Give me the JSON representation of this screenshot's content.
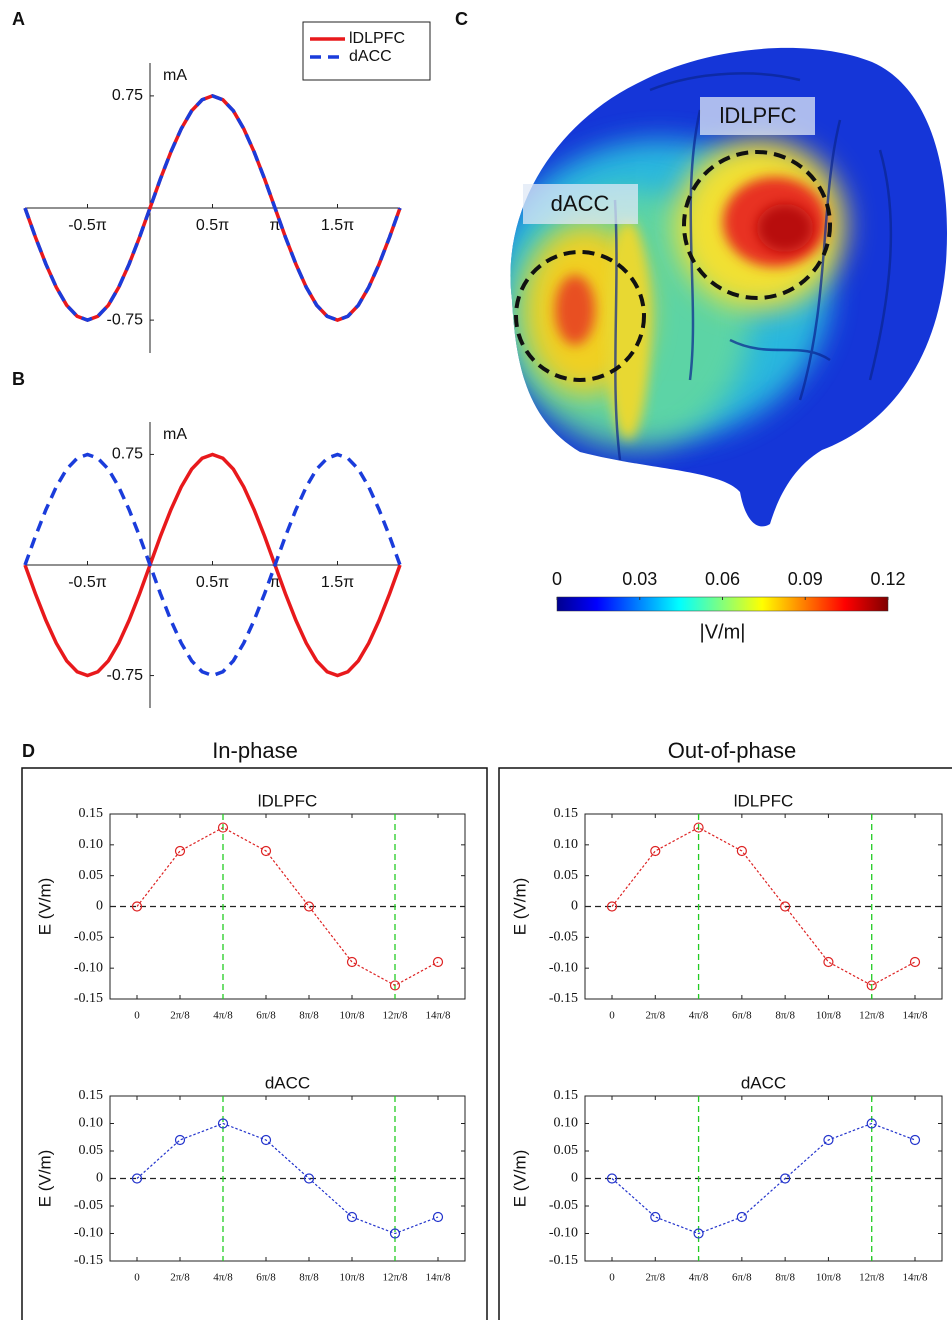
{
  "figure": {
    "panel_labels": [
      "A",
      "B",
      "C",
      "D"
    ],
    "column_titles": [
      "In-phase",
      "Out-of-phase"
    ]
  },
  "chart_data": [
    {
      "type": "line",
      "x": [
        -1,
        -0.917,
        -0.833,
        -0.75,
        -0.667,
        -0.583,
        -0.5,
        -0.417,
        -0.333,
        -0.25,
        -0.167,
        -0.083,
        0,
        0.083,
        0.167,
        0.25,
        0.333,
        0.417,
        0.5,
        0.583,
        0.667,
        0.75,
        0.833,
        0.917,
        1,
        1.083,
        1.167,
        1.25,
        1.333,
        1.417,
        1.5,
        1.583,
        1.667,
        1.75,
        1.833,
        1.917,
        2
      ],
      "xlim": [
        -1,
        2
      ],
      "xticks": [
        {
          "value": -0.5,
          "label": "-0.5π"
        },
        {
          "value": 0.5,
          "label": "0.5π"
        },
        {
          "value": 1,
          "label": "π"
        },
        {
          "value": 1.5,
          "label": "1.5π"
        }
      ],
      "ylim": [
        -0.97,
        0.97
      ],
      "yticks": [
        0.75,
        -0.75
      ],
      "ylabel": "mA",
      "legend": "top-right",
      "series": [
        {
          "name": "lDLPFC",
          "color": "#e8191c",
          "dash": false,
          "values": [
            0,
            -0.194,
            -0.375,
            -0.53,
            -0.65,
            -0.724,
            -0.75,
            -0.724,
            -0.65,
            -0.53,
            -0.375,
            -0.194,
            0,
            0.194,
            0.375,
            0.53,
            0.65,
            0.724,
            0.75,
            0.724,
            0.65,
            0.53,
            0.375,
            0.194,
            0,
            -0.194,
            -0.375,
            -0.53,
            -0.65,
            -0.724,
            -0.75,
            -0.724,
            -0.65,
            -0.53,
            -0.375,
            -0.194,
            0
          ]
        },
        {
          "name": "dACC",
          "color": "#1a3cdb",
          "dash": true,
          "values": [
            0,
            -0.194,
            -0.375,
            -0.53,
            -0.65,
            -0.724,
            -0.75,
            -0.724,
            -0.65,
            -0.53,
            -0.375,
            -0.194,
            0,
            0.194,
            0.375,
            0.53,
            0.65,
            0.724,
            0.75,
            0.724,
            0.65,
            0.53,
            0.375,
            0.194,
            0,
            -0.194,
            -0.375,
            -0.53,
            -0.65,
            -0.724,
            -0.75,
            -0.724,
            -0.65,
            -0.53,
            -0.375,
            -0.194,
            0
          ]
        }
      ]
    },
    {
      "type": "line",
      "x": [
        -1,
        -0.917,
        -0.833,
        -0.75,
        -0.667,
        -0.583,
        -0.5,
        -0.417,
        -0.333,
        -0.25,
        -0.167,
        -0.083,
        0,
        0.083,
        0.167,
        0.25,
        0.333,
        0.417,
        0.5,
        0.583,
        0.667,
        0.75,
        0.833,
        0.917,
        1,
        1.083,
        1.167,
        1.25,
        1.333,
        1.417,
        1.5,
        1.583,
        1.667,
        1.75,
        1.833,
        1.917,
        2
      ],
      "xlim": [
        -1,
        2
      ],
      "xticks": [
        {
          "value": -0.5,
          "label": "-0.5π"
        },
        {
          "value": 0.5,
          "label": "0.5π"
        },
        {
          "value": 1,
          "label": "π"
        },
        {
          "value": 1.5,
          "label": "1.5π"
        }
      ],
      "ylim": [
        -0.97,
        0.97
      ],
      "yticks": [
        0.75,
        -0.75
      ],
      "ylabel": "mA",
      "series": [
        {
          "color": "#e8191c",
          "dash": false,
          "values": [
            0,
            -0.194,
            -0.375,
            -0.53,
            -0.65,
            -0.724,
            -0.75,
            -0.724,
            -0.65,
            -0.53,
            -0.375,
            -0.194,
            0,
            0.194,
            0.375,
            0.53,
            0.65,
            0.724,
            0.75,
            0.724,
            0.65,
            0.53,
            0.375,
            0.194,
            0,
            -0.194,
            -0.375,
            -0.53,
            -0.65,
            -0.724,
            -0.75,
            -0.724,
            -0.65,
            -0.53,
            -0.375,
            -0.194,
            0
          ]
        },
        {
          "color": "#1a3cdb",
          "dash": true,
          "values": [
            0,
            0.194,
            0.375,
            0.53,
            0.65,
            0.724,
            0.75,
            0.724,
            0.65,
            0.53,
            0.375,
            0.194,
            0,
            -0.194,
            -0.375,
            -0.53,
            -0.65,
            -0.724,
            -0.75,
            -0.724,
            -0.65,
            -0.53,
            -0.375,
            -0.194,
            0,
            0.194,
            0.375,
            0.53,
            0.65,
            0.724,
            0.75,
            0.724,
            0.65,
            0.53,
            0.375,
            0.194,
            0
          ]
        }
      ]
    },
    {
      "type": "colorbar",
      "annotations": [
        "lDLPFC",
        "dACC"
      ],
      "xlim": [
        0,
        0.12
      ],
      "xticks": [
        0,
        0.03,
        0.06,
        0.09,
        0.12
      ],
      "xlabel": "|V/m|",
      "colormap": "jet"
    },
    {
      "type": "line",
      "title": "lDLPFC",
      "box": true,
      "zero_line": true,
      "highlight_indices": [
        2,
        6
      ],
      "categories": [
        "0",
        "2π/8",
        "4π/8",
        "6π/8",
        "8π/8",
        "10π/8",
        "12π/8",
        "14π/8"
      ],
      "ylim": [
        -0.15,
        0.15
      ],
      "yticks": [
        0.15,
        {
          "value": 0.1,
          "label": "0.10"
        },
        0.05,
        0,
        -0.05,
        {
          "value": -0.1,
          "label": "-0.10"
        },
        -0.15
      ],
      "ylabel": "E (V/m)",
      "series": [
        {
          "color": "#dd2222",
          "dash": "dotted",
          "marker": "circle",
          "values": [
            0,
            0.09,
            0.128,
            0.09,
            0,
            -0.09,
            -0.128,
            -0.09
          ]
        }
      ]
    },
    {
      "type": "line",
      "title": "dACC",
      "box": true,
      "zero_line": true,
      "highlight_indices": [
        2,
        6
      ],
      "categories": [
        "0",
        "2π/8",
        "4π/8",
        "6π/8",
        "8π/8",
        "10π/8",
        "12π/8",
        "14π/8"
      ],
      "ylim": [
        -0.15,
        0.15
      ],
      "yticks": [
        0.15,
        {
          "value": 0.1,
          "label": "0.10"
        },
        0.05,
        0,
        -0.05,
        {
          "value": -0.1,
          "label": "-0.10"
        },
        -0.15
      ],
      "ylabel": "E (V/m)",
      "series": [
        {
          "color": "#2233cc",
          "dash": "dotted",
          "marker": "circle",
          "values": [
            0,
            0.07,
            0.1,
            0.07,
            0,
            -0.07,
            -0.1,
            -0.07
          ]
        }
      ]
    },
    {
      "type": "line",
      "title": "lDLPFC",
      "box": true,
      "zero_line": true,
      "highlight_indices": [
        2,
        6
      ],
      "categories": [
        "0",
        "2π/8",
        "4π/8",
        "6π/8",
        "8π/8",
        "10π/8",
        "12π/8",
        "14π/8"
      ],
      "ylim": [
        -0.15,
        0.15
      ],
      "yticks": [
        0.15,
        {
          "value": 0.1,
          "label": "0.10"
        },
        0.05,
        0,
        -0.05,
        {
          "value": -0.1,
          "label": "-0.10"
        },
        -0.15
      ],
      "ylabel": "E (V/m)",
      "series": [
        {
          "color": "#dd2222",
          "dash": "dotted",
          "marker": "circle",
          "values": [
            0,
            0.09,
            0.128,
            0.09,
            0,
            -0.09,
            -0.128,
            -0.09
          ]
        }
      ]
    },
    {
      "type": "line",
      "title": "dACC",
      "box": true,
      "zero_line": true,
      "highlight_indices": [
        2,
        6
      ],
      "categories": [
        "0",
        "2π/8",
        "4π/8",
        "6π/8",
        "8π/8",
        "10π/8",
        "12π/8",
        "14π/8"
      ],
      "ylim": [
        -0.15,
        0.15
      ],
      "yticks": [
        0.15,
        {
          "value": 0.1,
          "label": "0.10"
        },
        0.05,
        0,
        -0.05,
        {
          "value": -0.1,
          "label": "-0.10"
        },
        -0.15
      ],
      "ylabel": "E (V/m)",
      "series": [
        {
          "color": "#2233cc",
          "dash": "dotted",
          "marker": "circle",
          "values": [
            0,
            -0.07,
            -0.1,
            -0.07,
            0,
            0.07,
            0.1,
            0.07
          ]
        }
      ]
    }
  ]
}
